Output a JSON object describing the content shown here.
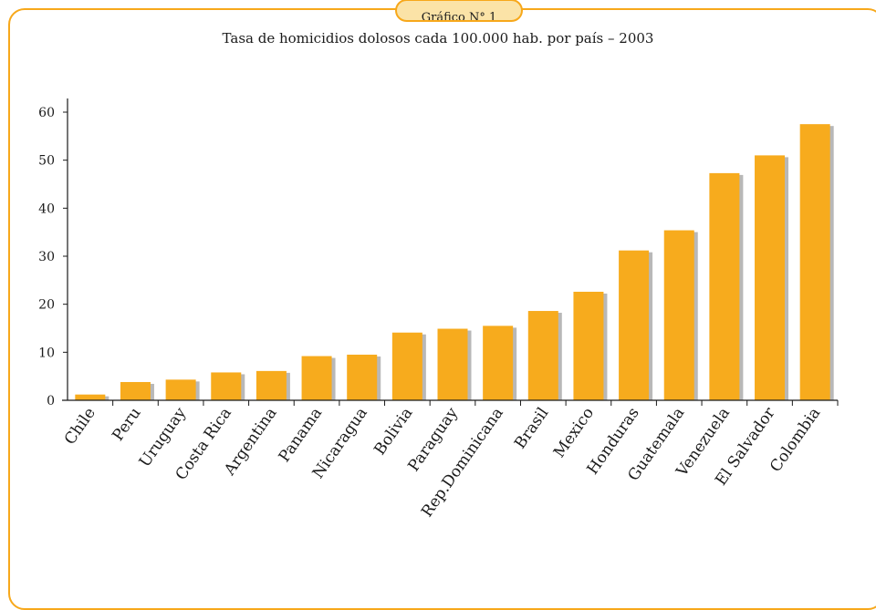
{
  "header": {
    "tab_label": "Gráfico N° 1"
  },
  "chart_data": {
    "type": "bar",
    "title": "Tasa de homicidios dolosos cada 100.000 hab. por país – 2003",
    "xlabel": "",
    "ylabel": "",
    "ylim": [
      0,
      60
    ],
    "yticks": [
      0,
      10,
      20,
      30,
      40,
      50,
      60
    ],
    "grid": false,
    "bar_color": "#f7ab1d",
    "shadow_color": "#b8b8b8",
    "categories": [
      "Chile",
      "Peru",
      "Uruguay",
      "Costa Rica",
      "Argentina",
      "Panama",
      "Nicaragua",
      "Bolivia",
      "Paraguay",
      "Rep.Dominicana",
      "Brasil",
      "Mexico",
      "Honduras",
      "Guatemala",
      "Venezuela",
      "El Salvador",
      "Colombia"
    ],
    "values": [
      1.2,
      3.8,
      4.3,
      5.8,
      6.1,
      9.2,
      9.5,
      14.1,
      14.9,
      15.5,
      18.6,
      22.6,
      31.2,
      35.4,
      47.3,
      51.0,
      57.5
    ]
  }
}
